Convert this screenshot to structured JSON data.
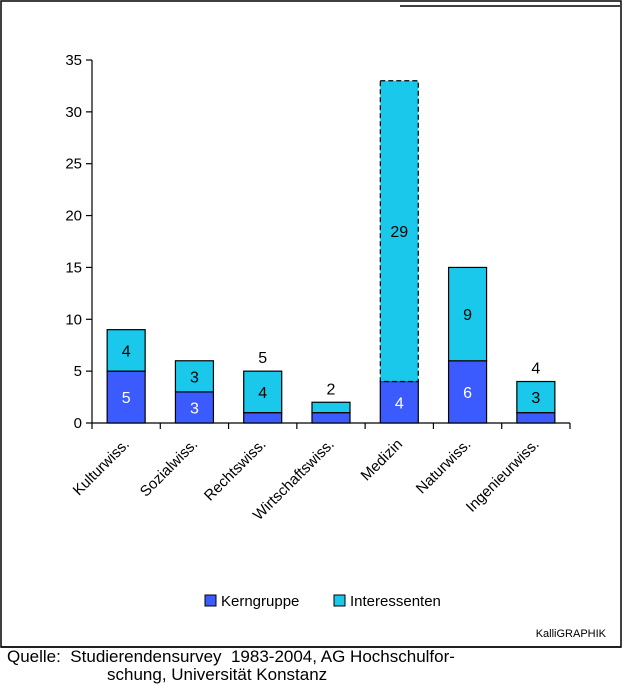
{
  "chart_data": {
    "type": "bar",
    "stacked": true,
    "categories": [
      "Kulturwiss.",
      "Sozialwiss.",
      "Rechtswiss.",
      "Wirtschaftswiss.",
      "Medizin",
      "Naturwiss.",
      "Ingenieurwiss."
    ],
    "series": [
      {
        "name": "Kerngruppe",
        "color": "#3b5bff",
        "values": [
          5,
          3,
          1,
          1,
          4,
          6,
          1
        ],
        "labels": [
          "5",
          "3",
          "",
          "",
          "4",
          "6",
          ""
        ]
      },
      {
        "name": "Interessenten",
        "color": "#19c8ea",
        "values": [
          4,
          3,
          4,
          1,
          29,
          9,
          3
        ],
        "labels": [
          "4",
          "3",
          "4",
          "",
          "29",
          "9",
          "3"
        ]
      }
    ],
    "totals_labels": [
      "",
      "",
      "5",
      "2",
      "",
      "",
      "4"
    ],
    "highlighted_category": "Medizin",
    "yticks": [
      "0",
      "5",
      "10",
      "15",
      "20",
      "25",
      "30",
      "35"
    ],
    "ylim": [
      0,
      35
    ],
    "legend_position": "bottom",
    "credit": "KalliGRAPHIK"
  },
  "footer": {
    "line1": "Quelle:  Studierendensurvey  1983-2004, AG Hochschulfor-",
    "line2": "schung, Universität Konstanz"
  }
}
